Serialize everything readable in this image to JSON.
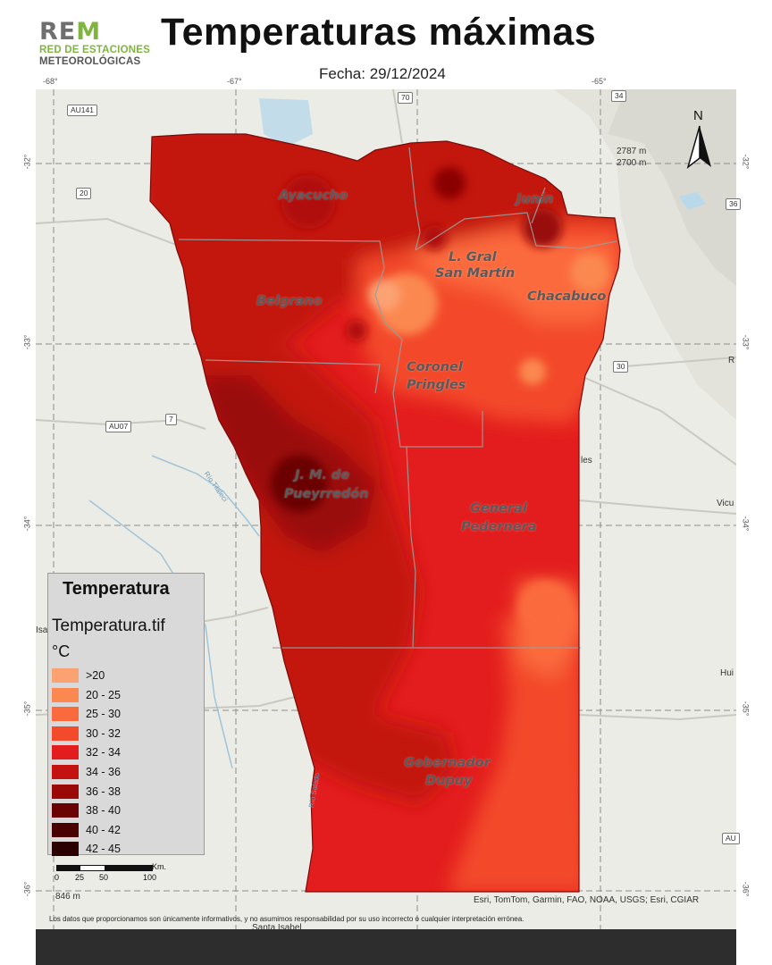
{
  "logo": {
    "rem_prefix": "RE",
    "rem_suffix": "M",
    "line1": "RED DE ESTACIONES",
    "line2": "METEOROLÓGICAS"
  },
  "title": "Temperaturas máximas",
  "date_label": "Fecha: 29/12/2024",
  "graticule": {
    "lon_labels": [
      "-68°",
      "-67°",
      "-65°"
    ],
    "lat_labels": [
      "-32°",
      "-33°",
      "-34°",
      "-35°",
      "-36°"
    ]
  },
  "north_arrow": {
    "label": "N"
  },
  "departments": [
    "Ayacucho",
    "Junín",
    "L. Gral",
    "San Martín",
    "Belgrano",
    "Chacabuco",
    "Coronel",
    "Pringles",
    "J. M. de",
    "Pueyrredón",
    "General",
    "Pedernera",
    "Gobernador",
    "Dupuy"
  ],
  "basemap": {
    "road_shields": [
      "AU141",
      "20",
      "70",
      "34",
      "36",
      "30",
      "7",
      "AU07",
      "AU"
    ],
    "peaks": [
      "2787 m",
      "2700 m"
    ],
    "places": [
      "les",
      "Vicu",
      "Hui",
      "R",
      "Isabel",
      "Santa Isabel",
      "846 m"
    ],
    "rivers": [
      "Río Tilaleci",
      "Río Salado"
    ]
  },
  "legend": {
    "title": "Temperatura",
    "layer": "Temperatura.tif",
    "unit": "°C",
    "classes": [
      {
        "label": ">20",
        "color": "#fba273"
      },
      {
        "label": "20 - 25",
        "color": "#fb8850"
      },
      {
        "label": "25 - 30",
        "color": "#fb6a3c"
      },
      {
        "label": "30 - 32",
        "color": "#f34a2c"
      },
      {
        "label": "32 - 34",
        "color": "#e31d1d"
      },
      {
        "label": "34 - 36",
        "color": "#c3120f"
      },
      {
        "label": "36 - 38",
        "color": "#9a0808"
      },
      {
        "label": "38 - 40",
        "color": "#6a0404"
      },
      {
        "label": "40 - 42",
        "color": "#480202"
      },
      {
        "label": "42 - 45",
        "color": "#2b0000"
      }
    ]
  },
  "scale_bar": {
    "ticks": [
      "0",
      "25",
      "50",
      "100"
    ],
    "unit": "Km."
  },
  "attribution": "Esri, TomTom, Garmin, FAO, NOAA, USGS; Esri, CGIAR",
  "disclaimer": "Los datos que proporcionamos son únicamente informativos, y no asumimos responsabilidad por su uso incorrecto o cualquier interpretación errónea."
}
